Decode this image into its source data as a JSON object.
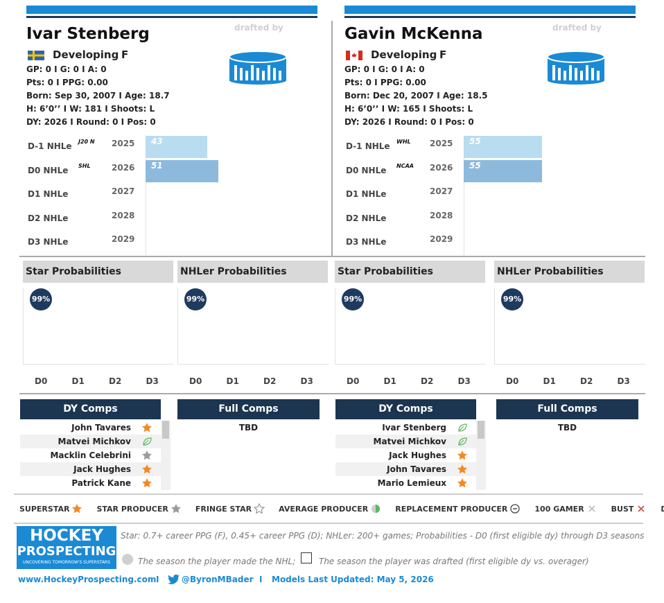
{
  "drafted_by": "drafted by",
  "players": [
    {
      "name": "Ivar Stenberg",
      "status": "Developing",
      "position": "F",
      "stats": [
        "GP: 0 I G: 0 I A: 0",
        "Pts: 0 I PPG: 0.00",
        "Born: Sep 30, 2007 I Age: 18.7",
        "H: 6’0’’ I W: 181 I Shoots: L",
        "DY: 2026 I Round: 0 I Pos: 0"
      ],
      "nhle": [
        {
          "label": "D-1 NHLe",
          "league": "J20 N",
          "year": 2025,
          "value": 43
        },
        {
          "label": "D0 NHLe",
          "league": "SHL",
          "year": 2026,
          "value": 51
        },
        {
          "label": "D1 NHLe",
          "year": 2027
        },
        {
          "label": "D2 NHLe",
          "year": 2028
        },
        {
          "label": "D3 NHLe",
          "year": 2029
        }
      ],
      "star_probabilities": {
        "title": "Star Probabilities",
        "label": "99%",
        "categories": [
          "D0",
          "D1",
          "D2",
          "D3"
        ]
      },
      "nhler_probabilities": {
        "title": "NHLer Probabilities",
        "label": "99%",
        "categories": [
          "D0",
          "D1",
          "D2",
          "D3"
        ]
      },
      "dy_comps": {
        "title": "DY Comps",
        "rows": [
          {
            "name": "John Tavares",
            "tier": 0
          },
          {
            "name": "Matvei Michkov",
            "tier": 7
          },
          {
            "name": "Macklin Celebrini",
            "tier": 1
          },
          {
            "name": "Jack Hughes",
            "tier": 0
          },
          {
            "name": "Patrick Kane",
            "tier": 0
          }
        ]
      },
      "full_comps": {
        "title": "Full Comps",
        "rows": [
          "TBD"
        ]
      }
    },
    {
      "name": "Gavin McKenna",
      "status": "Developing",
      "position": "F",
      "stats": [
        "GP: 0 I G: 0 I A: 0",
        "Pts: 0 I PPG: 0.00",
        "Born: Dec 20, 2007 I Age: 18.5",
        "H: 6’0’’ I W: 165 I Shoots: L",
        "DY: 2026 I Round: 0 I Pos: 0"
      ],
      "nhle": [
        {
          "label": "D-1 NHLe",
          "league": "WHL",
          "year": 2025,
          "value": 55
        },
        {
          "label": "D0 NHLe",
          "league": "NCAA",
          "year": 2026,
          "value": 55
        },
        {
          "label": "D1 NHLe",
          "year": 2027
        },
        {
          "label": "D2 NHLe",
          "year": 2028
        },
        {
          "label": "D3 NHLe",
          "year": 2029
        }
      ],
      "star_probabilities": {
        "title": "Star Probabilities",
        "label": "99%",
        "categories": [
          "D0",
          "D1",
          "D2",
          "D3"
        ]
      },
      "nhler_probabilities": {
        "title": "NHLer Probabilities",
        "label": "99%",
        "categories": [
          "D0",
          "D1",
          "D2",
          "D3"
        ]
      },
      "dy_comps": {
        "title": "DY Comps",
        "rows": [
          {
            "name": "Ivar Stenberg",
            "tier": 7
          },
          {
            "name": "Matvei Michkov",
            "tier": 7
          },
          {
            "name": "Jack Hughes",
            "tier": 0
          },
          {
            "name": "John Tavares",
            "tier": 0
          },
          {
            "name": "Mario Lemieux",
            "tier": 0
          }
        ]
      },
      "full_comps": {
        "title": "Full Comps",
        "rows": [
          "TBD"
        ]
      }
    }
  ],
  "legend": [
    "SUPERSTAR",
    "STAR PRODUCER",
    "FRINGE STAR",
    "AVERAGE PRODUCER",
    "REPLACEMENT PRODUCER",
    "100 GAMER",
    "BUST",
    "DEVELOPING"
  ],
  "footer": {
    "logo": {
      "line1": "HOCKEY",
      "line2": "PROSPECTING",
      "tagline": "UNCOVERING TOMORROW'S SUPERSTARS"
    },
    "note": "Star: 0.7+ career PPG (F), 0.45+ career PPG (D); NHLer: 200+ games; Probabilities - D0 (first eligible dy) through D3 seasons",
    "made_nhl": "The season the player made the NHL;",
    "drafted": "The season the player was drafted (first eligible dy vs. overager)",
    "website": "www.HockeyProspecting.com",
    "separator": "I",
    "twitter": "@ByronMBader",
    "updated": "Models Last Updated: May 5, 2026"
  }
}
